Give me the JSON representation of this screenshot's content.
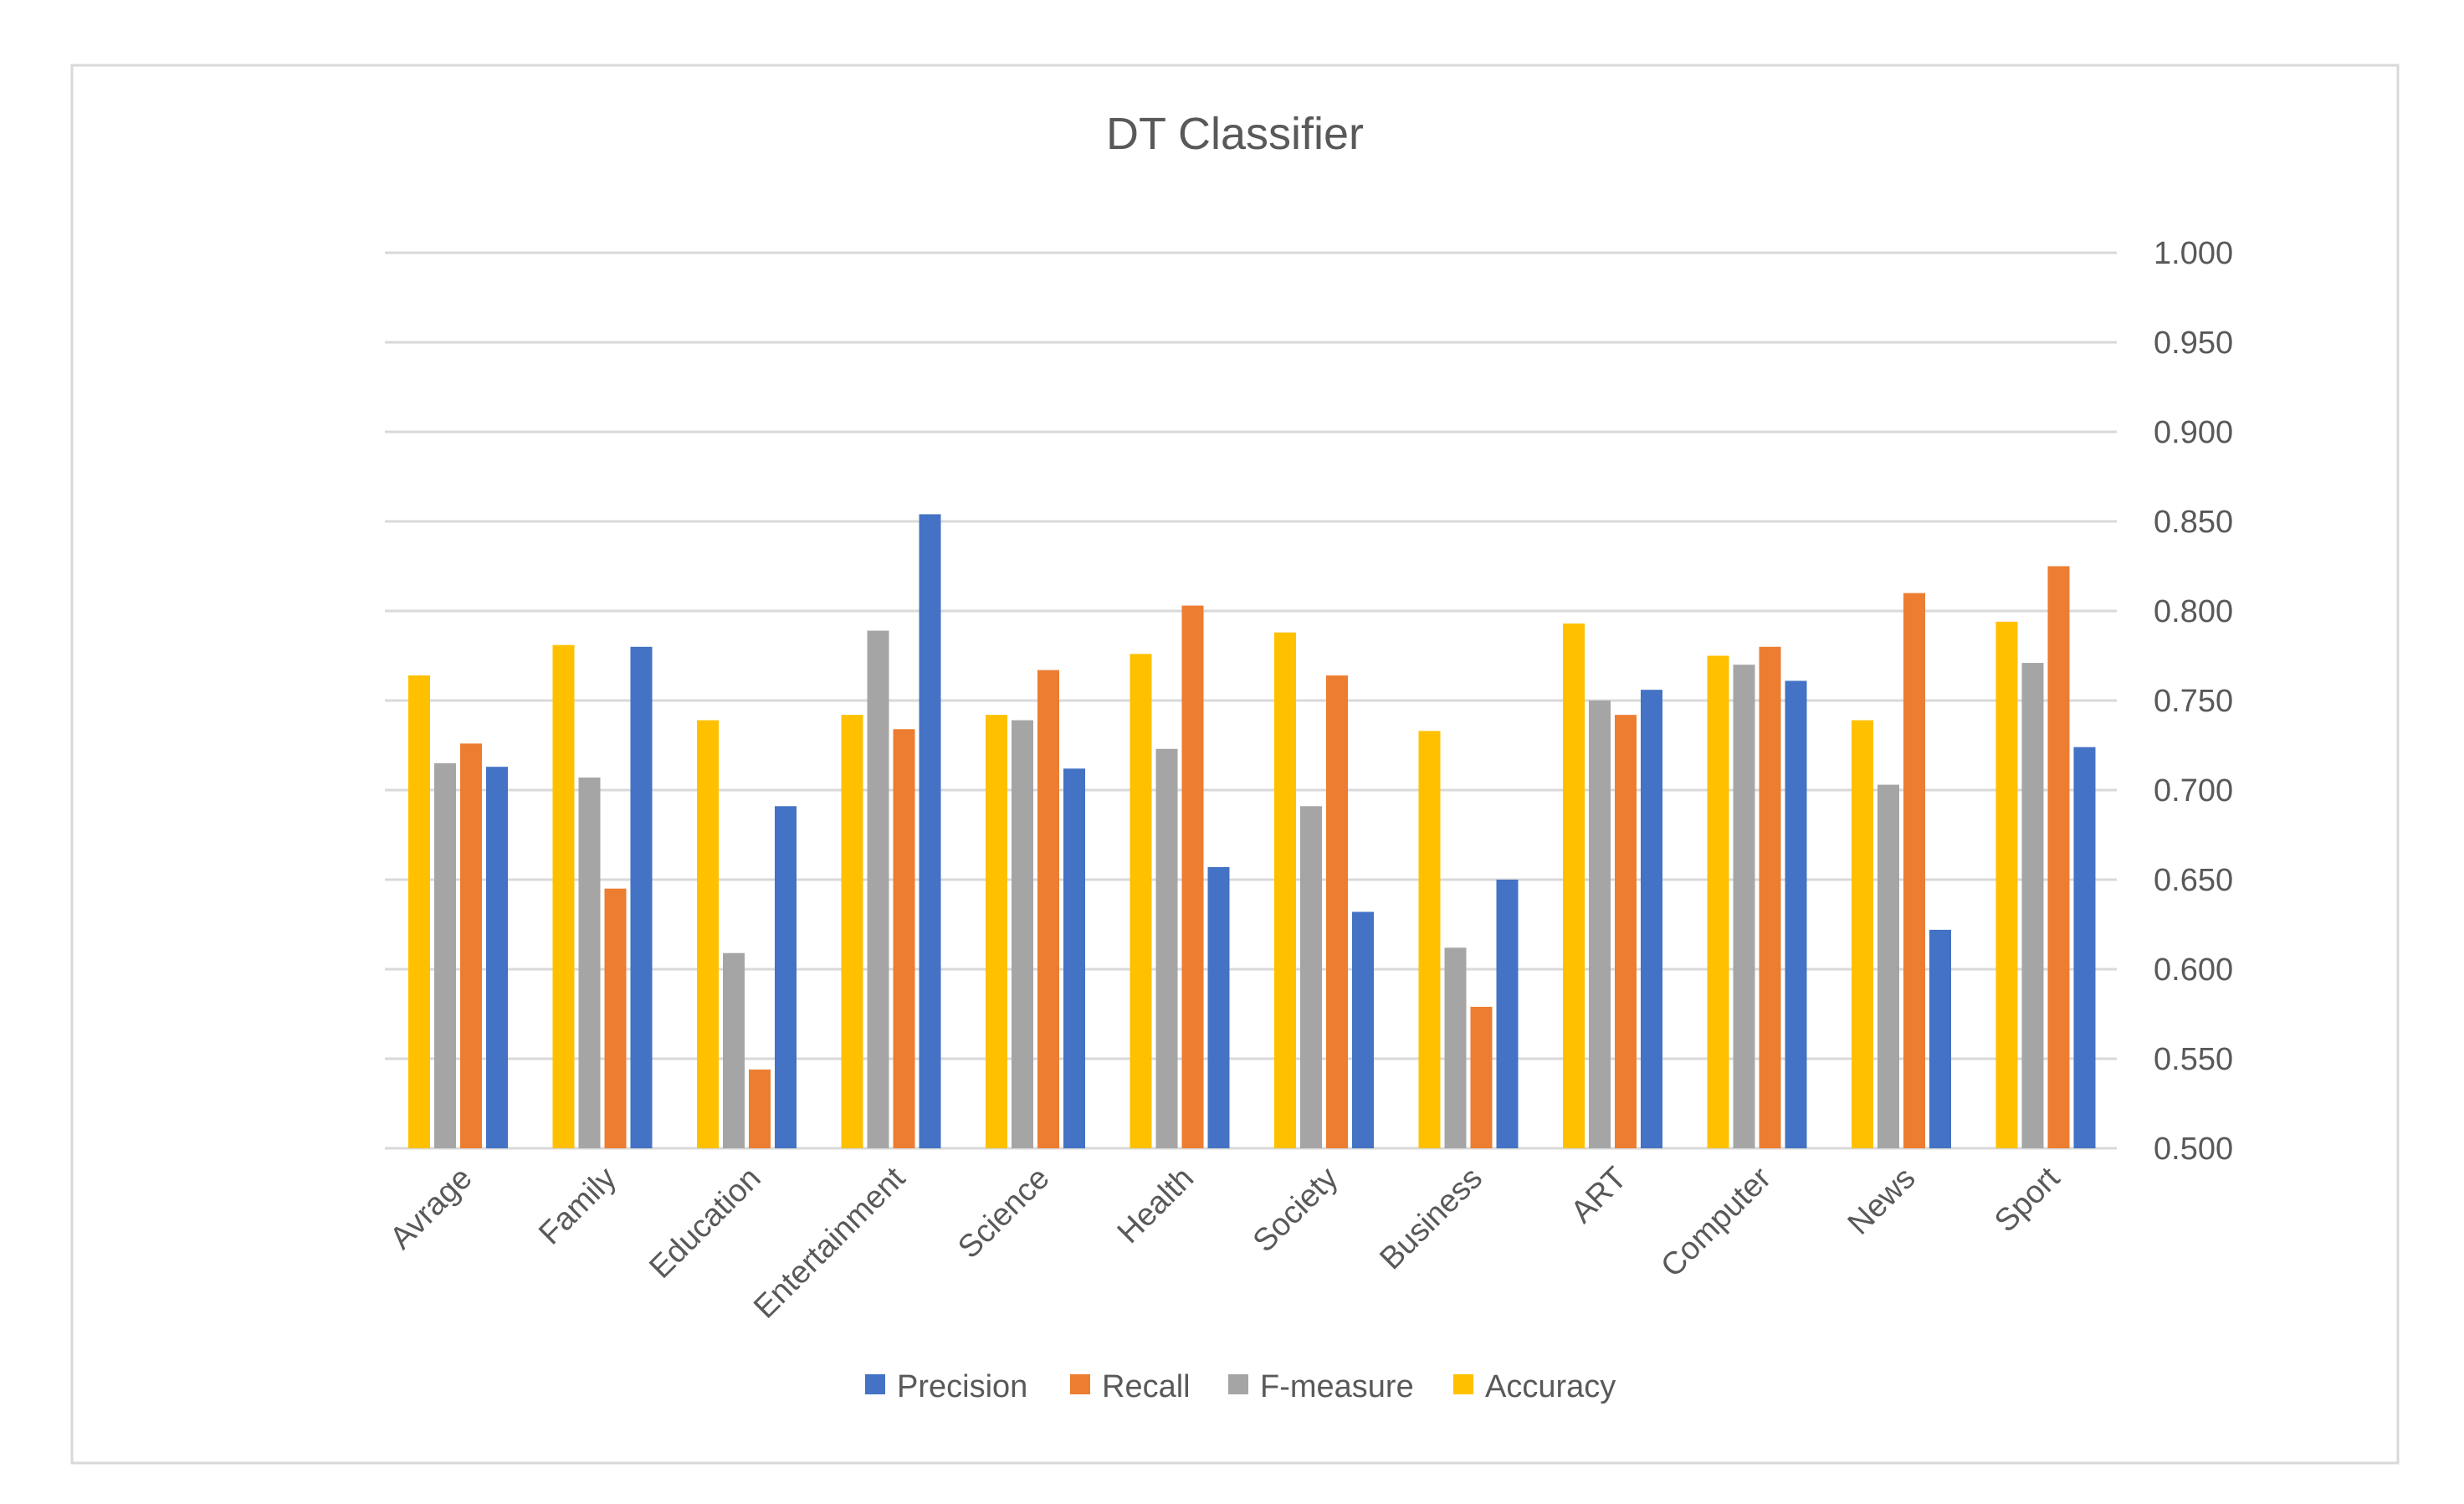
{
  "chart_data": {
    "type": "bar",
    "title": "DT Classifier",
    "xlabel": "",
    "ylabel": "",
    "ylim": [
      0.5,
      1.0
    ],
    "y_axis_position": "right",
    "y_ticks": [
      "0.500",
      "0.550",
      "0.600",
      "0.650",
      "0.700",
      "0.750",
      "0.800",
      "0.850",
      "0.900",
      "0.950",
      "1.000"
    ],
    "grid": true,
    "legend_position": "bottom",
    "categories": [
      "Avrage",
      "Family",
      "Education",
      "Entertainment",
      "Science",
      "Health",
      "Society",
      "Business",
      "ART",
      "Computer",
      "News",
      "Sport"
    ],
    "bar_order": [
      "Accuracy",
      "F-measure",
      "Recall",
      "Precision"
    ],
    "series": [
      {
        "name": "Precision",
        "color": "#4472C4",
        "values": [
          0.713,
          0.78,
          0.691,
          0.854,
          0.712,
          0.657,
          0.632,
          0.65,
          0.756,
          0.761,
          0.622,
          0.724
        ]
      },
      {
        "name": "Recall",
        "color": "#ED7D31",
        "values": [
          0.726,
          0.645,
          0.544,
          0.734,
          0.767,
          0.803,
          0.764,
          0.579,
          0.742,
          0.78,
          0.81,
          0.825
        ]
      },
      {
        "name": "F-measure",
        "color": "#A5A5A5",
        "values": [
          0.715,
          0.707,
          0.609,
          0.789,
          0.739,
          0.723,
          0.691,
          0.612,
          0.75,
          0.77,
          0.703,
          0.771
        ]
      },
      {
        "name": "Accuracy",
        "color": "#FFC000",
        "values": [
          0.764,
          0.781,
          0.739,
          0.742,
          0.742,
          0.776,
          0.788,
          0.733,
          0.793,
          0.775,
          0.739,
          0.794
        ]
      }
    ],
    "legend": [
      "Precision",
      "Recall",
      "F-measure",
      "Accuracy"
    ]
  },
  "colors": {
    "gridline": "#D9D9D9",
    "axis_text": "#595959",
    "frame": "#D9D9D9",
    "background": "#FFFFFF"
  }
}
